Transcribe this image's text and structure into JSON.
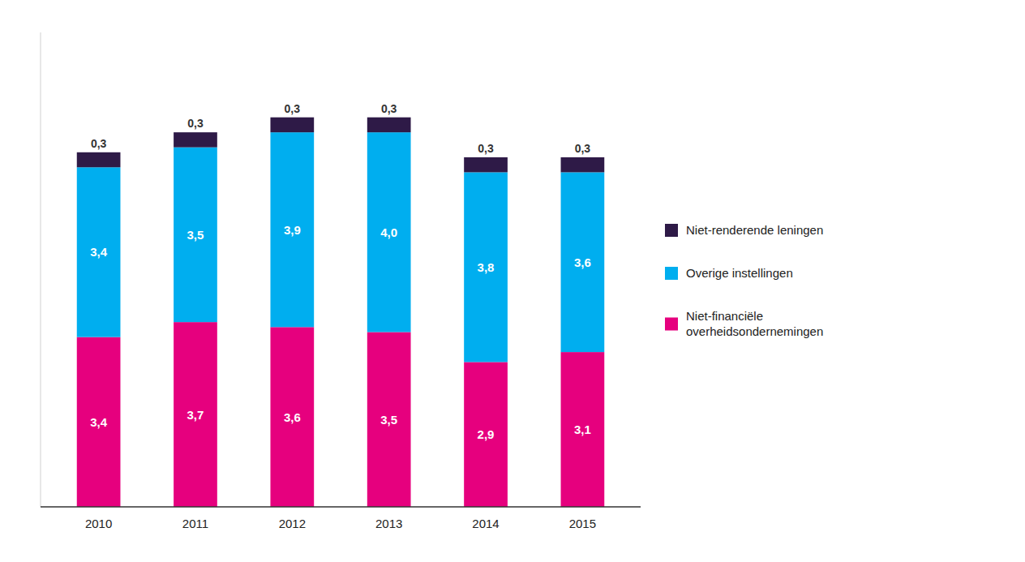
{
  "chart_data": {
    "type": "bar",
    "stacked": true,
    "categories": [
      "2010",
      "2011",
      "2012",
      "2013",
      "2014",
      "2015"
    ],
    "series": [
      {
        "name": "Niet-financiële\noverheidsondernemingen",
        "color": "#E6007E",
        "values": [
          3.4,
          3.7,
          3.6,
          3.5,
          2.9,
          3.1
        ],
        "value_labels": [
          "3,4",
          "3,7",
          "3,6",
          "3,5",
          "2,9",
          "3,1"
        ]
      },
      {
        "name": "Overige instellingen",
        "color": "#00AEEF",
        "values": [
          3.4,
          3.5,
          3.9,
          4.0,
          3.8,
          3.6
        ],
        "value_labels": [
          "3,4",
          "3,5",
          "3,9",
          "4,0",
          "3,8",
          "3,6"
        ]
      },
      {
        "name": "Niet-renderende leningen",
        "color": "#2E1A47",
        "values": [
          0.3,
          0.3,
          0.3,
          0.3,
          0.3,
          0.3
        ],
        "value_labels": [
          "0,3",
          "0,3",
          "0,3",
          "0,3",
          "0,3",
          "0,3"
        ]
      }
    ],
    "ylim": [
      0,
      9.5
    ],
    "data_labels": true,
    "tick_labels": "x",
    "grid": false,
    "legend": "right"
  }
}
